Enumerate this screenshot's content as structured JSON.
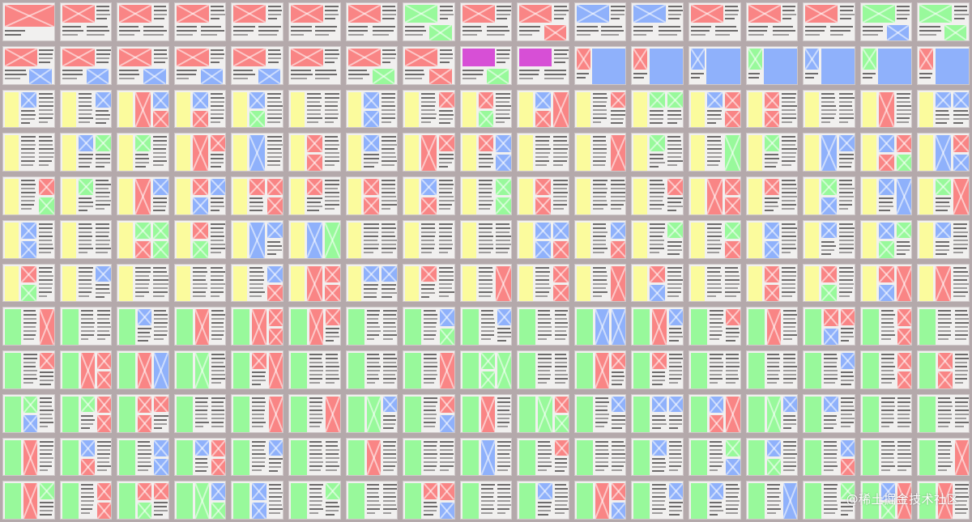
{
  "grid": {
    "rows": 12,
    "cols": 17,
    "colors": {
      "red": "#f98585",
      "blue": "#8fb1fb",
      "green": "#98f99b",
      "yellow": "#fbfb9d",
      "magenta": "#d74fd6",
      "text_dark": "#6d6b6b",
      "text_light": "#9e9c9c",
      "page": "#f1f0ef"
    },
    "row_types": [
      "hero-top",
      "hero-top-2",
      "yellow-sidebar",
      "yellow-sidebar",
      "yellow-sidebar",
      "yellow-sidebar",
      "yellow-sidebar",
      "green-sidebar",
      "green-sidebar",
      "green-sidebar",
      "green-sidebar",
      "green-sidebar"
    ]
  },
  "watermark": {
    "text": "@稀土掘金技术社区"
  }
}
